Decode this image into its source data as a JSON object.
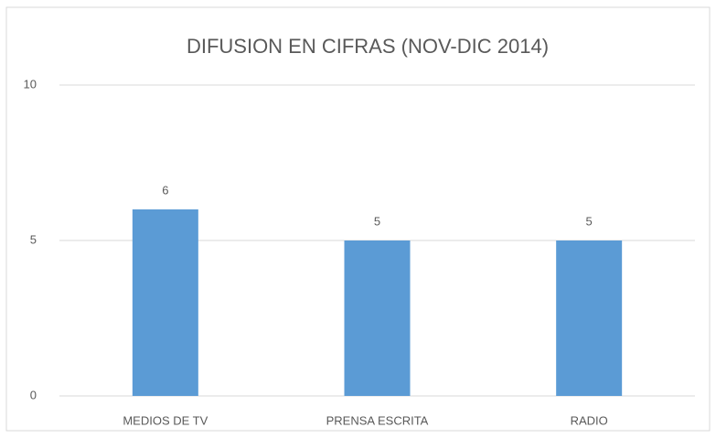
{
  "chart_data": {
    "type": "bar",
    "title": "DIFUSION EN CIFRAS (NOV-DIC 2014)",
    "categories": [
      "MEDIOS DE TV",
      "PRENSA ESCRITA",
      "RADIO"
    ],
    "values": [
      6,
      5,
      5
    ],
    "color": "#5b9bd5",
    "ylim": [
      0,
      10
    ],
    "yticks": [
      0,
      5,
      10
    ],
    "grid": true
  }
}
